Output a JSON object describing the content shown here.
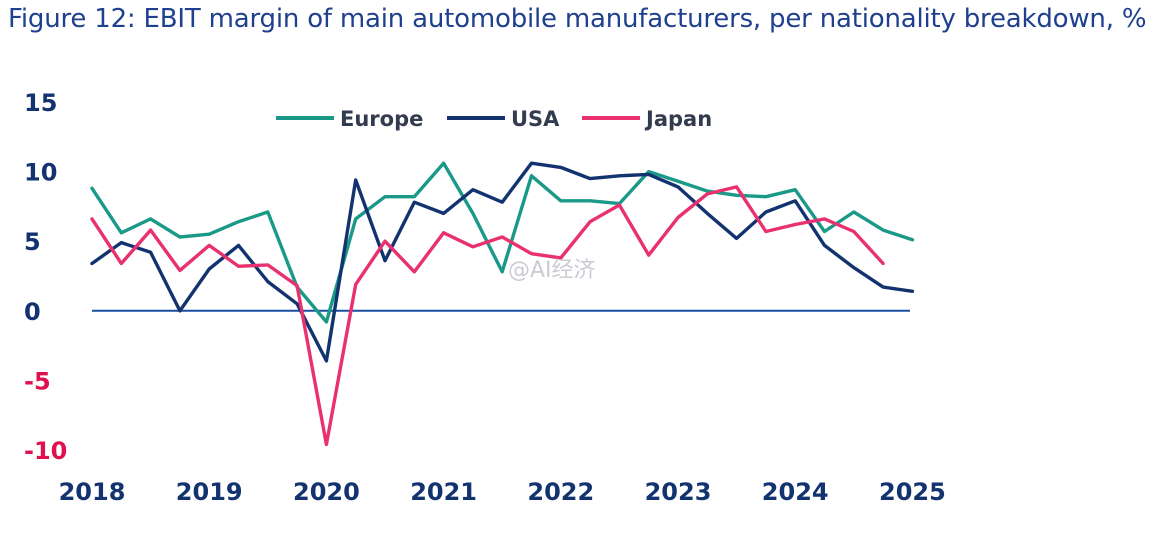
{
  "chart_data": {
    "type": "line",
    "title": "Figure 12: EBIT margin of main automobile manufacturers, per nationality breakdown, %",
    "xlabel": "",
    "ylabel": "",
    "ylim": [
      -10,
      15
    ],
    "y_ticks": [
      "15",
      "10",
      "5",
      "0",
      "-5",
      "-10"
    ],
    "y_tick_values": [
      15,
      10,
      5,
      0,
      -5,
      -10
    ],
    "x_ticks": [
      "2018",
      "2019",
      "2020",
      "2021",
      "2022",
      "2023",
      "2024",
      "2025"
    ],
    "quarters_per_year": 4,
    "legend_position": "top-center",
    "series": [
      {
        "name": "Europe",
        "color": "#1a9988",
        "values": [
          8.8,
          5.6,
          6.6,
          5.3,
          5.5,
          6.4,
          7.1,
          1.7,
          -0.8,
          6.6,
          8.2,
          8.2,
          10.6,
          7.0,
          2.8,
          9.7,
          7.9,
          7.9,
          7.7,
          10.0,
          9.3,
          8.6,
          8.3,
          8.2,
          8.7,
          5.7,
          7.1,
          5.8,
          5.1
        ]
      },
      {
        "name": "USA",
        "color": "#12336f",
        "values": [
          3.4,
          4.9,
          4.2,
          0.0,
          3.0,
          4.7,
          2.1,
          0.5,
          -3.6,
          9.4,
          3.6,
          7.8,
          7.0,
          8.7,
          7.8,
          10.6,
          10.3,
          9.5,
          9.7,
          9.8,
          8.9,
          7.0,
          5.2,
          7.1,
          7.9,
          4.7,
          3.1,
          1.7,
          1.4
        ]
      },
      {
        "name": "Japan",
        "color": "#e8316e",
        "values": [
          6.6,
          3.4,
          5.8,
          2.9,
          4.7,
          3.2,
          3.3,
          1.8,
          -9.6,
          1.9,
          5.0,
          2.8,
          5.6,
          4.6,
          5.3,
          4.1,
          3.8,
          6.4,
          7.6,
          4.0,
          6.7,
          8.4,
          8.9,
          5.7,
          6.2,
          6.6,
          5.7,
          3.4
        ]
      }
    ]
  },
  "colors": {
    "title": "#1f3f8f",
    "positive_tick": "#12336f",
    "negative_tick": "#e0104f",
    "zero_line": "#1a4fa0"
  },
  "watermark": "@AI经济"
}
